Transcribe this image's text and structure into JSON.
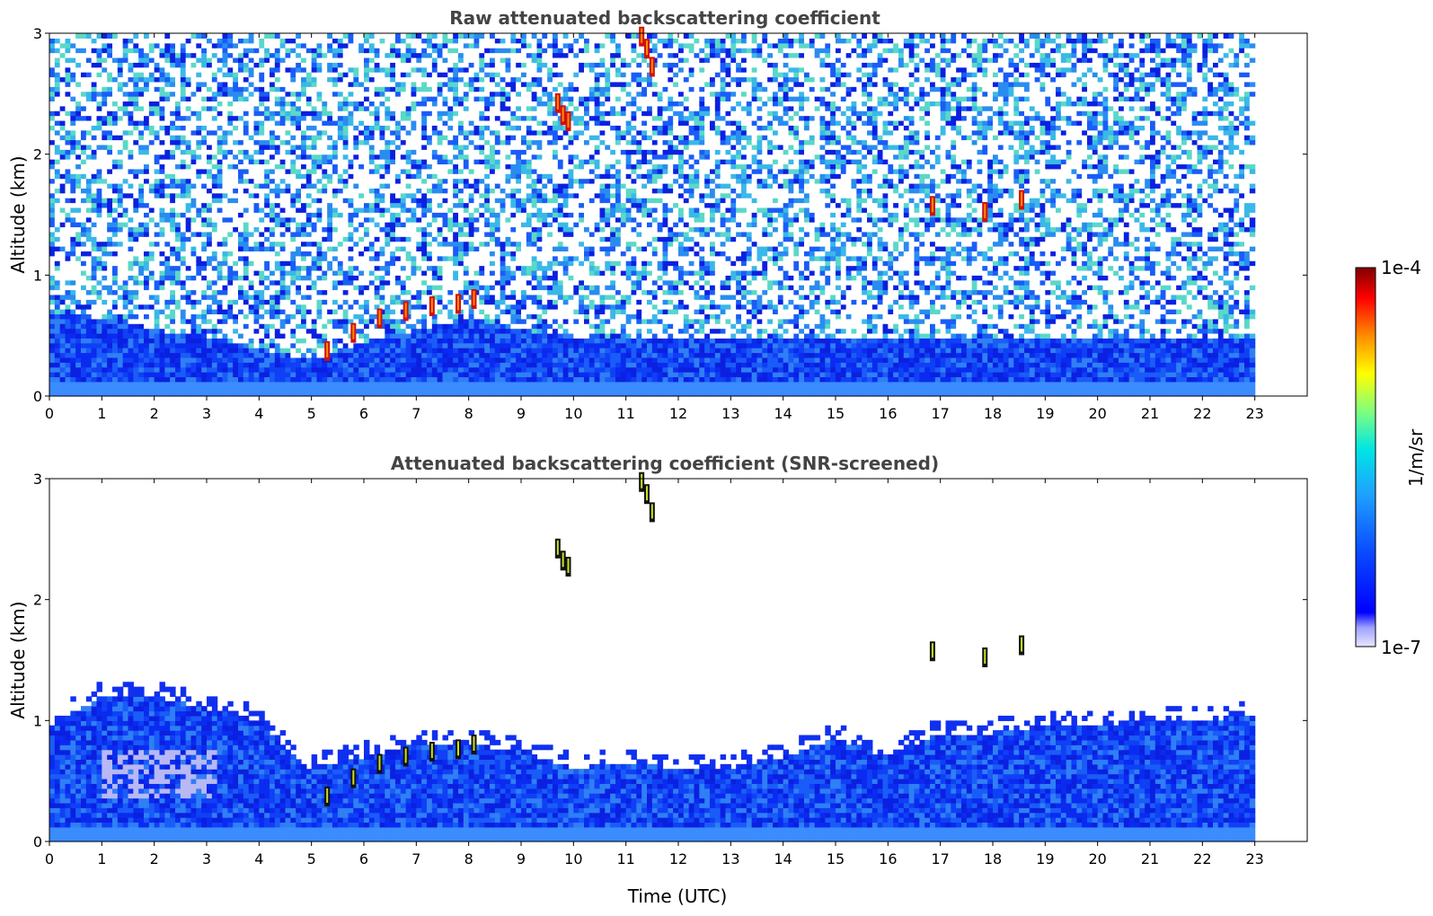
{
  "chart_data": [
    {
      "type": "heatmap",
      "title": "Raw attenuated backscattering coefficient",
      "xlabel": "",
      "ylabel": "Altitude (km)",
      "xlim": [
        0,
        24
      ],
      "ylim": [
        0,
        3
      ],
      "x_ticks": [
        "0",
        "1",
        "2",
        "3",
        "4",
        "5",
        "6",
        "7",
        "8",
        "9",
        "10",
        "11",
        "12",
        "13",
        "14",
        "15",
        "16",
        "17",
        "18",
        "19",
        "20",
        "21",
        "22",
        "23"
      ],
      "y_ticks": [
        "0",
        "1",
        "2",
        "3"
      ],
      "data_extent_x": [
        0,
        23
      ],
      "features": [
        {
          "kind": "aerosol-layer-top",
          "x": [
            0,
            1,
            2,
            3,
            4,
            5,
            6,
            7,
            8,
            9,
            10,
            11,
            12,
            13,
            14,
            15,
            16,
            17,
            18,
            19,
            20,
            21,
            22,
            23
          ],
          "y": [
            0.7,
            0.65,
            0.55,
            0.5,
            0.4,
            0.3,
            0.45,
            0.55,
            0.65,
            0.55,
            0.5,
            0.5,
            0.5,
            0.5,
            0.5,
            0.5,
            0.5,
            0.5,
            0.5,
            0.5,
            0.5,
            0.5,
            0.5,
            0.5
          ]
        },
        {
          "kind": "cloud",
          "x": [
            5.3,
            5.8,
            6.3,
            6.8,
            7.3,
            7.8,
            8.1
          ],
          "y": [
            0.35,
            0.5,
            0.62,
            0.68,
            0.72,
            0.74,
            0.78
          ]
        },
        {
          "kind": "cloud",
          "x": [
            9.7,
            9.8,
            9.9
          ],
          "y": [
            2.4,
            2.3,
            2.25
          ]
        },
        {
          "kind": "cloud",
          "x": [
            11.3,
            11.4,
            11.5
          ],
          "y": [
            2.95,
            2.85,
            2.7
          ]
        },
        {
          "kind": "cloud",
          "x": [
            16.85,
            17.85,
            18.55
          ],
          "y": [
            1.55,
            1.5,
            1.6
          ]
        }
      ]
    },
    {
      "type": "heatmap",
      "title": "Attenuated backscattering coefficient (SNR-screened)",
      "xlabel": "Time (UTC)",
      "ylabel": "Altitude (km)",
      "xlim": [
        0,
        24
      ],
      "ylim": [
        0,
        3
      ],
      "x_ticks": [
        "0",
        "1",
        "2",
        "3",
        "4",
        "5",
        "6",
        "7",
        "8",
        "9",
        "10",
        "11",
        "12",
        "13",
        "14",
        "15",
        "16",
        "17",
        "18",
        "19",
        "20",
        "21",
        "22",
        "23"
      ],
      "y_ticks": [
        "0",
        "1",
        "2",
        "3"
      ],
      "data_extent_x": [
        0,
        23
      ],
      "features": [
        {
          "kind": "aerosol-layer-top",
          "x": [
            0,
            1,
            2,
            3,
            4,
            5,
            6,
            7,
            8,
            9,
            10,
            11,
            12,
            13,
            14,
            15,
            16,
            17,
            18,
            19,
            20,
            21,
            22,
            23
          ],
          "y": [
            0.95,
            1.2,
            1.2,
            1.1,
            1.0,
            0.6,
            0.7,
            0.8,
            0.8,
            0.75,
            0.6,
            0.65,
            0.6,
            0.6,
            0.7,
            0.85,
            0.7,
            0.9,
            0.9,
            0.95,
            0.95,
            1.0,
            1.0,
            1.05
          ]
        },
        {
          "kind": "cloud",
          "x": [
            5.3,
            5.8,
            6.3,
            6.8,
            7.3,
            7.8,
            8.1
          ],
          "y": [
            0.35,
            0.5,
            0.62,
            0.68,
            0.72,
            0.74,
            0.78
          ]
        },
        {
          "kind": "cloud",
          "x": [
            9.7,
            9.8,
            9.9
          ],
          "y": [
            2.4,
            2.3,
            2.25
          ]
        },
        {
          "kind": "cloud",
          "x": [
            11.3,
            11.4,
            11.5
          ],
          "y": [
            2.95,
            2.85,
            2.7
          ]
        },
        {
          "kind": "cloud",
          "x": [
            16.85,
            17.85,
            18.55
          ],
          "y": [
            1.55,
            1.5,
            1.6
          ]
        }
      ]
    }
  ],
  "colorbar": {
    "label": "1/m/sr",
    "max_label": "1e-4",
    "min_label": "1e-7",
    "scale": "log",
    "range": [
      1e-07,
      0.0001
    ],
    "colormap": [
      "#e8e8ff",
      "#0000ff",
      "#1e90ff",
      "#00ffff",
      "#7fff7f",
      "#ffff00",
      "#ff7f00",
      "#ff0000",
      "#800000"
    ]
  }
}
